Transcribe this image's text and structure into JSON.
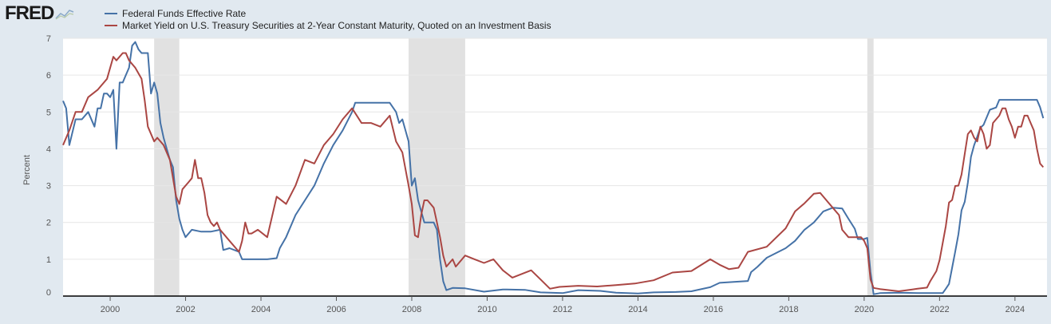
{
  "header": {
    "logo_text": "FRED",
    "logo_icon": "chart-line-icon"
  },
  "chart_data": {
    "type": "line",
    "title": "",
    "xlabel": "",
    "ylabel": "Percent",
    "ylim": [
      0,
      7
    ],
    "y_ticks": [
      "0",
      "1",
      "2",
      "3",
      "4",
      "5",
      "6",
      "7"
    ],
    "x_ticks": [
      "2000",
      "2002",
      "2004",
      "2006",
      "2008",
      "2010",
      "2012",
      "2014",
      "2016",
      "2018",
      "2020",
      "2022",
      "2024"
    ],
    "grid": true,
    "legend_position": "top-left",
    "recessions": [
      {
        "start": "2001-03",
        "end": "2001-11"
      },
      {
        "start": "2007-12",
        "end": "2009-06"
      },
      {
        "start": "2020-02",
        "end": "2020-04"
      }
    ],
    "series": [
      {
        "name": "Federal Funds Effective Rate",
        "color": "#4572a7",
        "points": [
          [
            "1998-10",
            5.3
          ],
          [
            "1998-11",
            5.1
          ],
          [
            "1998-12",
            4.1
          ],
          [
            "1999-02",
            4.8
          ],
          [
            "1999-04",
            4.8
          ],
          [
            "1999-06",
            5.0
          ],
          [
            "1999-08",
            4.6
          ],
          [
            "1999-09",
            5.1
          ],
          [
            "1999-10",
            5.1
          ],
          [
            "1999-11",
            5.5
          ],
          [
            "1999-12",
            5.5
          ],
          [
            "2000-01",
            5.4
          ],
          [
            "2000-02",
            5.6
          ],
          [
            "2000-03",
            4.0
          ],
          [
            "2000-04",
            5.8
          ],
          [
            "2000-05",
            5.8
          ],
          [
            "2000-06",
            6.0
          ],
          [
            "2000-07",
            6.2
          ],
          [
            "2000-08",
            6.8
          ],
          [
            "2000-09",
            6.9
          ],
          [
            "2000-10",
            6.7
          ],
          [
            "2000-11",
            6.6
          ],
          [
            "2000-12",
            6.6
          ],
          [
            "2001-01",
            6.6
          ],
          [
            "2001-02",
            5.5
          ],
          [
            "2001-03",
            5.8
          ],
          [
            "2001-04",
            5.5
          ],
          [
            "2001-05",
            4.7
          ],
          [
            "2001-06",
            4.3
          ],
          [
            "2001-07",
            4.0
          ],
          [
            "2001-08",
            3.7
          ],
          [
            "2001-09",
            3.5
          ],
          [
            "2001-10",
            2.6
          ],
          [
            "2001-11",
            2.1
          ],
          [
            "2001-12",
            1.8
          ],
          [
            "2002-01",
            1.6
          ],
          [
            "2002-03",
            1.8
          ],
          [
            "2002-06",
            1.75
          ],
          [
            "2002-09",
            1.75
          ],
          [
            "2002-12",
            1.8
          ],
          [
            "2003-01",
            1.25
          ],
          [
            "2003-03",
            1.3
          ],
          [
            "2003-06",
            1.2
          ],
          [
            "2003-07",
            1.0
          ],
          [
            "2003-09",
            1.0
          ],
          [
            "2003-12",
            1.0
          ],
          [
            "2004-03",
            1.0
          ],
          [
            "2004-06",
            1.03
          ],
          [
            "2004-07",
            1.3
          ],
          [
            "2004-09",
            1.6
          ],
          [
            "2004-12",
            2.2
          ],
          [
            "2005-03",
            2.6
          ],
          [
            "2005-06",
            3.0
          ],
          [
            "2005-09",
            3.6
          ],
          [
            "2005-12",
            4.1
          ],
          [
            "2006-03",
            4.5
          ],
          [
            "2006-06",
            5.0
          ],
          [
            "2006-07",
            5.25
          ],
          [
            "2006-09",
            5.25
          ],
          [
            "2006-12",
            5.25
          ],
          [
            "2007-03",
            5.25
          ],
          [
            "2007-06",
            5.25
          ],
          [
            "2007-08",
            5.0
          ],
          [
            "2007-09",
            4.7
          ],
          [
            "2007-10",
            4.8
          ],
          [
            "2007-11",
            4.5
          ],
          [
            "2007-12",
            4.2
          ],
          [
            "2008-01",
            3.0
          ],
          [
            "2008-02",
            3.2
          ],
          [
            "2008-03",
            2.6
          ],
          [
            "2008-04",
            2.3
          ],
          [
            "2008-05",
            2.0
          ],
          [
            "2008-06",
            2.0
          ],
          [
            "2008-07",
            2.0
          ],
          [
            "2008-08",
            2.0
          ],
          [
            "2008-09",
            1.8
          ],
          [
            "2008-10",
            1.0
          ],
          [
            "2008-11",
            0.4
          ],
          [
            "2008-12",
            0.16
          ],
          [
            "2009-02",
            0.22
          ],
          [
            "2009-06",
            0.21
          ],
          [
            "2009-12",
            0.12
          ],
          [
            "2010-06",
            0.18
          ],
          [
            "2011-01",
            0.17
          ],
          [
            "2011-06",
            0.1
          ],
          [
            "2012-01",
            0.08
          ],
          [
            "2012-06",
            0.16
          ],
          [
            "2013-01",
            0.14
          ],
          [
            "2013-06",
            0.09
          ],
          [
            "2014-01",
            0.07
          ],
          [
            "2014-06",
            0.1
          ],
          [
            "2015-01",
            0.11
          ],
          [
            "2015-06",
            0.13
          ],
          [
            "2015-12",
            0.24
          ],
          [
            "2016-03",
            0.36
          ],
          [
            "2016-12",
            0.41
          ],
          [
            "2017-01",
            0.65
          ],
          [
            "2017-03",
            0.79
          ],
          [
            "2017-06",
            1.04
          ],
          [
            "2017-12",
            1.3
          ],
          [
            "2018-03",
            1.5
          ],
          [
            "2018-06",
            1.8
          ],
          [
            "2018-09",
            2.0
          ],
          [
            "2018-12",
            2.3
          ],
          [
            "2019-03",
            2.4
          ],
          [
            "2019-06",
            2.38
          ],
          [
            "2019-08",
            2.1
          ],
          [
            "2019-10",
            1.83
          ],
          [
            "2019-11",
            1.55
          ],
          [
            "2020-01",
            1.55
          ],
          [
            "2020-02",
            1.58
          ],
          [
            "2020-03",
            0.65
          ],
          [
            "2020-04",
            0.05
          ],
          [
            "2020-06",
            0.08
          ],
          [
            "2020-12",
            0.09
          ],
          [
            "2021-06",
            0.08
          ],
          [
            "2021-12",
            0.08
          ],
          [
            "2022-02",
            0.08
          ],
          [
            "2022-03",
            0.2
          ],
          [
            "2022-04",
            0.33
          ],
          [
            "2022-05",
            0.77
          ],
          [
            "2022-06",
            1.21
          ],
          [
            "2022-07",
            1.68
          ],
          [
            "2022-08",
            2.33
          ],
          [
            "2022-09",
            2.56
          ],
          [
            "2022-10",
            3.08
          ],
          [
            "2022-11",
            3.78
          ],
          [
            "2022-12",
            4.1
          ],
          [
            "2023-01",
            4.33
          ],
          [
            "2023-02",
            4.57
          ],
          [
            "2023-03",
            4.65
          ],
          [
            "2023-05",
            5.06
          ],
          [
            "2023-07",
            5.12
          ],
          [
            "2023-08",
            5.33
          ],
          [
            "2023-12",
            5.33
          ],
          [
            "2024-06",
            5.33
          ],
          [
            "2024-08",
            5.33
          ],
          [
            "2024-09",
            5.13
          ],
          [
            "2024-10",
            4.83
          ]
        ]
      },
      {
        "name": "Market Yield on U.S. Treasury Securities at 2-Year Constant Maturity, Quoted on an Investment Basis",
        "color": "#aa4643",
        "points": [
          [
            "1998-10",
            4.1
          ],
          [
            "1998-12",
            4.5
          ],
          [
            "1999-02",
            5.0
          ],
          [
            "1999-04",
            5.0
          ],
          [
            "1999-06",
            5.4
          ],
          [
            "1999-09",
            5.6
          ],
          [
            "1999-12",
            5.9
          ],
          [
            "2000-02",
            6.5
          ],
          [
            "2000-03",
            6.4
          ],
          [
            "2000-05",
            6.6
          ],
          [
            "2000-06",
            6.6
          ],
          [
            "2000-07",
            6.4
          ],
          [
            "2000-09",
            6.2
          ],
          [
            "2000-11",
            5.9
          ],
          [
            "2000-12",
            5.3
          ],
          [
            "2001-01",
            4.6
          ],
          [
            "2001-03",
            4.2
          ],
          [
            "2001-04",
            4.3
          ],
          [
            "2001-06",
            4.1
          ],
          [
            "2001-08",
            3.7
          ],
          [
            "2001-09",
            3.2
          ],
          [
            "2001-10",
            2.7
          ],
          [
            "2001-11",
            2.5
          ],
          [
            "2001-12",
            2.9
          ],
          [
            "2002-02",
            3.1
          ],
          [
            "2002-03",
            3.2
          ],
          [
            "2002-04",
            3.7
          ],
          [
            "2002-05",
            3.2
          ],
          [
            "2002-06",
            3.2
          ],
          [
            "2002-07",
            2.8
          ],
          [
            "2002-08",
            2.2
          ],
          [
            "2002-09",
            2.0
          ],
          [
            "2002-10",
            1.9
          ],
          [
            "2002-11",
            2.0
          ],
          [
            "2002-12",
            1.8
          ],
          [
            "2003-03",
            1.5
          ],
          [
            "2003-06",
            1.2
          ],
          [
            "2003-07",
            1.5
          ],
          [
            "2003-08",
            2.0
          ],
          [
            "2003-09",
            1.7
          ],
          [
            "2003-10",
            1.7
          ],
          [
            "2003-12",
            1.8
          ],
          [
            "2004-03",
            1.6
          ],
          [
            "2004-06",
            2.7
          ],
          [
            "2004-09",
            2.5
          ],
          [
            "2004-12",
            3.0
          ],
          [
            "2005-03",
            3.7
          ],
          [
            "2005-06",
            3.6
          ],
          [
            "2005-09",
            4.1
          ],
          [
            "2005-12",
            4.4
          ],
          [
            "2006-03",
            4.8
          ],
          [
            "2006-06",
            5.1
          ],
          [
            "2006-09",
            4.7
          ],
          [
            "2006-12",
            4.7
          ],
          [
            "2007-03",
            4.6
          ],
          [
            "2007-06",
            4.9
          ],
          [
            "2007-08",
            4.2
          ],
          [
            "2007-10",
            3.9
          ],
          [
            "2007-12",
            3.0
          ],
          [
            "2008-01",
            2.5
          ],
          [
            "2008-02",
            1.65
          ],
          [
            "2008-03",
            1.6
          ],
          [
            "2008-04",
            2.2
          ],
          [
            "2008-05",
            2.6
          ],
          [
            "2008-06",
            2.6
          ],
          [
            "2008-07",
            2.5
          ],
          [
            "2008-08",
            2.4
          ],
          [
            "2008-09",
            2.0
          ],
          [
            "2008-10",
            1.6
          ],
          [
            "2008-11",
            1.1
          ],
          [
            "2008-12",
            0.8
          ],
          [
            "2009-02",
            1.0
          ],
          [
            "2009-03",
            0.8
          ],
          [
            "2009-06",
            1.1
          ],
          [
            "2009-09",
            1.0
          ],
          [
            "2009-12",
            0.9
          ],
          [
            "2010-03",
            1.0
          ],
          [
            "2010-06",
            0.7
          ],
          [
            "2010-09",
            0.5
          ],
          [
            "2010-12",
            0.6
          ],
          [
            "2011-03",
            0.7
          ],
          [
            "2011-06",
            0.45
          ],
          [
            "2011-09",
            0.2
          ],
          [
            "2011-12",
            0.25
          ],
          [
            "2012-06",
            0.28
          ],
          [
            "2012-12",
            0.26
          ],
          [
            "2013-06",
            0.3
          ],
          [
            "2013-12",
            0.34
          ],
          [
            "2014-06",
            0.43
          ],
          [
            "2014-12",
            0.64
          ],
          [
            "2015-06",
            0.68
          ],
          [
            "2015-12",
            1.0
          ],
          [
            "2016-03",
            0.85
          ],
          [
            "2016-06",
            0.73
          ],
          [
            "2016-09",
            0.77
          ],
          [
            "2016-12",
            1.2
          ],
          [
            "2017-06",
            1.34
          ],
          [
            "2017-12",
            1.84
          ],
          [
            "2018-03",
            2.3
          ],
          [
            "2018-06",
            2.52
          ],
          [
            "2018-09",
            2.78
          ],
          [
            "2018-11",
            2.8
          ],
          [
            "2018-12",
            2.7
          ],
          [
            "2019-03",
            2.4
          ],
          [
            "2019-05",
            2.2
          ],
          [
            "2019-06",
            1.8
          ],
          [
            "2019-08",
            1.6
          ],
          [
            "2019-12",
            1.6
          ],
          [
            "2020-01",
            1.5
          ],
          [
            "2020-02",
            1.3
          ],
          [
            "2020-03",
            0.45
          ],
          [
            "2020-04",
            0.22
          ],
          [
            "2020-06",
            0.19
          ],
          [
            "2020-12",
            0.13
          ],
          [
            "2021-06",
            0.2
          ],
          [
            "2021-09",
            0.23
          ],
          [
            "2021-10",
            0.4
          ],
          [
            "2021-12",
            0.68
          ],
          [
            "2022-01",
            0.98
          ],
          [
            "2022-02",
            1.44
          ],
          [
            "2022-03",
            1.9
          ],
          [
            "2022-04",
            2.54
          ],
          [
            "2022-05",
            2.61
          ],
          [
            "2022-06",
            2.99
          ],
          [
            "2022-07",
            3.0
          ],
          [
            "2022-08",
            3.3
          ],
          [
            "2022-09",
            3.86
          ],
          [
            "2022-10",
            4.4
          ],
          [
            "2022-11",
            4.5
          ],
          [
            "2022-12",
            4.3
          ],
          [
            "2023-01",
            4.2
          ],
          [
            "2023-02",
            4.6
          ],
          [
            "2023-03",
            4.4
          ],
          [
            "2023-04",
            4.0
          ],
          [
            "2023-05",
            4.1
          ],
          [
            "2023-06",
            4.7
          ],
          [
            "2023-07",
            4.8
          ],
          [
            "2023-08",
            4.9
          ],
          [
            "2023-09",
            5.1
          ],
          [
            "2023-10",
            5.1
          ],
          [
            "2023-11",
            4.8
          ],
          [
            "2023-12",
            4.6
          ],
          [
            "2024-01",
            4.3
          ],
          [
            "2024-02",
            4.6
          ],
          [
            "2024-03",
            4.6
          ],
          [
            "2024-04",
            4.9
          ],
          [
            "2024-05",
            4.9
          ],
          [
            "2024-06",
            4.7
          ],
          [
            "2024-07",
            4.5
          ],
          [
            "2024-08",
            4.0
          ],
          [
            "2024-09",
            3.6
          ],
          [
            "2024-10",
            3.5
          ]
        ]
      }
    ]
  }
}
